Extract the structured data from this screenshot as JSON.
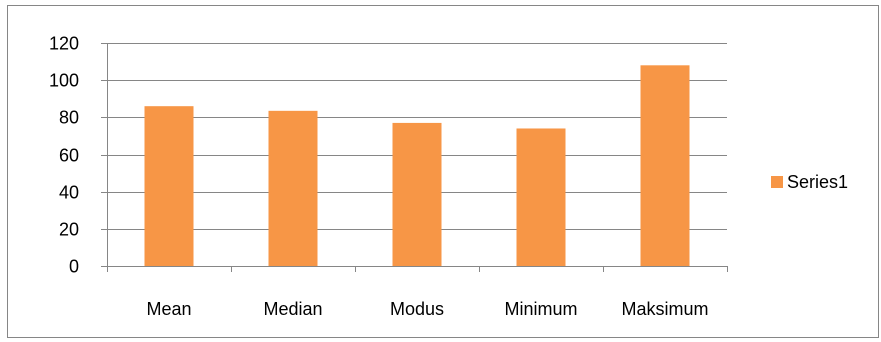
{
  "chart_data": {
    "type": "bar",
    "categories": [
      "Mean",
      "Median",
      "Modus",
      "Minimum",
      "Maksimum"
    ],
    "series": [
      {
        "name": "Series1",
        "values": [
          86,
          83.5,
          77,
          74,
          108
        ],
        "color": "#F79646"
      }
    ],
    "ylim": [
      0,
      120
    ],
    "yticks": [
      0,
      20,
      40,
      60,
      80,
      100,
      120
    ],
    "grid": true,
    "legend": "right",
    "title": "",
    "xlabel": "",
    "ylabel": ""
  }
}
